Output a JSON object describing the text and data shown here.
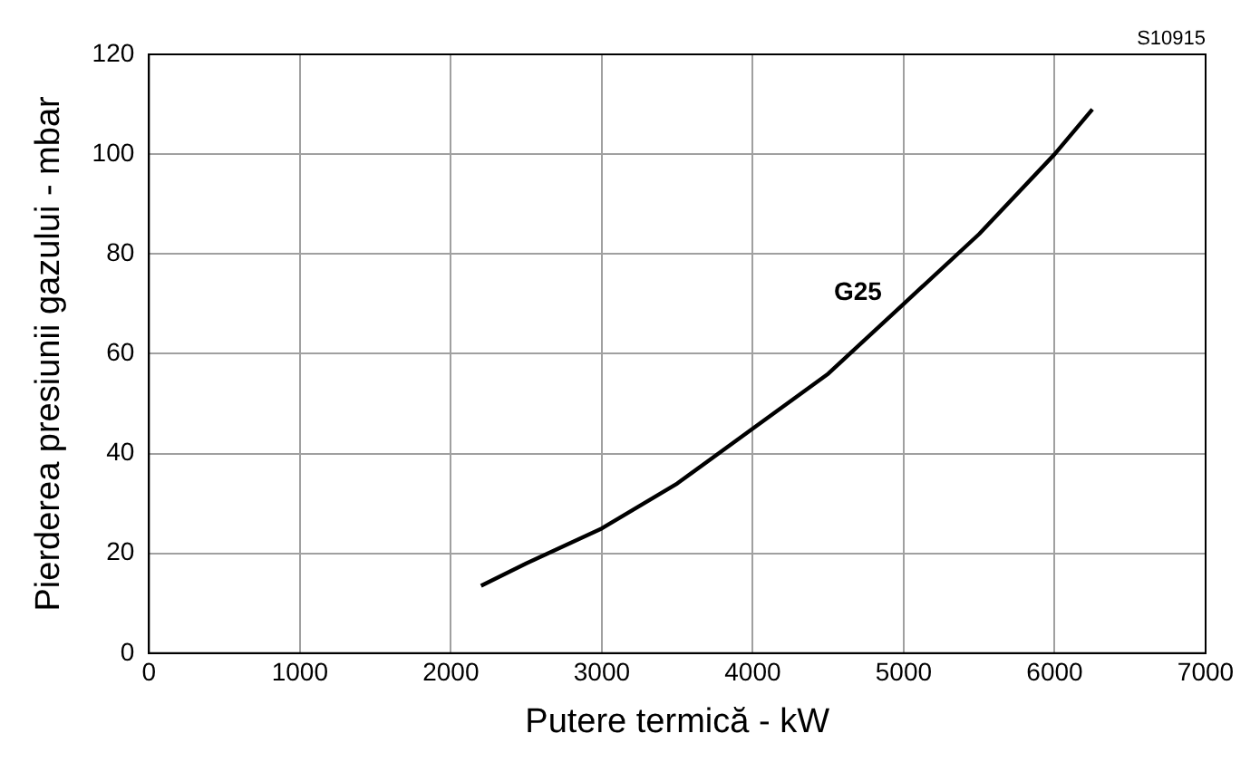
{
  "chart_data": {
    "type": "line",
    "xlabel": "Putere termică - kW",
    "ylabel": "Pierderea presiunii gazului - mbar",
    "annotations": [
      "S10915"
    ],
    "series": [
      {
        "name": "G25",
        "color": "#000000",
        "x": [
          2200,
          2500,
          3000,
          3500,
          4000,
          4500,
          5000,
          5500,
          6000,
          6250
        ],
        "values": [
          13.5,
          18,
          25,
          34,
          45,
          56,
          70,
          84,
          100,
          109
        ]
      }
    ],
    "xlim": [
      0,
      7000
    ],
    "xticks": [
      0,
      1000,
      2000,
      3000,
      4000,
      5000,
      6000,
      7000
    ],
    "ylim": [
      0,
      120
    ],
    "yticks": [
      0,
      20,
      40,
      60,
      80,
      100,
      120
    ],
    "grid": true,
    "legend": false,
    "marker": "none",
    "line_style": "solid"
  }
}
